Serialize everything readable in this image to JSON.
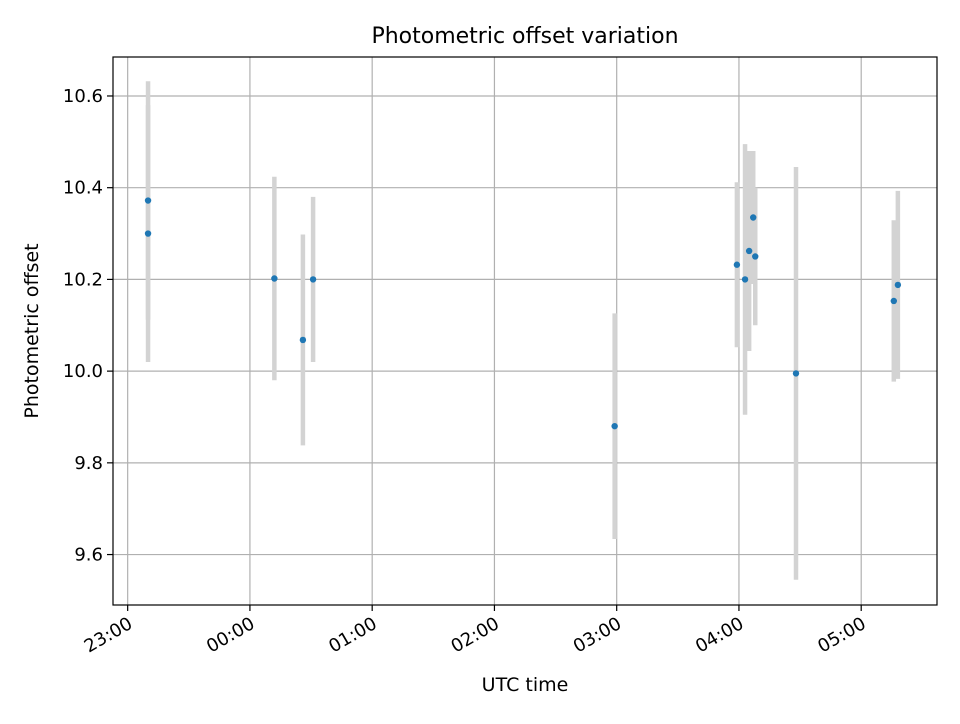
{
  "chart_data": {
    "type": "scatter",
    "title": "Photometric offset variation",
    "xlabel": "UTC time",
    "ylabel": "Photometric offset",
    "x_axis_kind": "time (hours since 23:00, spanning midnight)",
    "xlim_hours": [
      -0.12,
      6.62
    ],
    "ylim": [
      9.49,
      10.685
    ],
    "x_ticks": [
      {
        "label": "23:00",
        "h": 0
      },
      {
        "label": "00:00",
        "h": 1
      },
      {
        "label": "01:00",
        "h": 2
      },
      {
        "label": "02:00",
        "h": 3
      },
      {
        "label": "03:00",
        "h": 4
      },
      {
        "label": "04:00",
        "h": 5
      },
      {
        "label": "05:00",
        "h": 6
      }
    ],
    "y_ticks": [
      9.6,
      9.8,
      10.0,
      10.2,
      10.4,
      10.6
    ],
    "y_tick_labels": [
      "9.6",
      "9.8",
      "10.0",
      "10.2",
      "10.4",
      "10.6"
    ],
    "grid": true,
    "colors": {
      "point": "#1f77b4",
      "errorbar": "#d3d3d3",
      "grid": "#b0b0b0"
    },
    "points": [
      {
        "time": "23:10",
        "y": 10.372,
        "err": 0.26
      },
      {
        "time": "23:10",
        "y": 10.3,
        "err": 0.28
      },
      {
        "time": "00:12",
        "y": 10.202,
        "err": 0.222
      },
      {
        "time": "00:26",
        "y": 10.068,
        "err": 0.23
      },
      {
        "time": "00:31",
        "y": 10.2,
        "err": 0.18
      },
      {
        "time": "02:59",
        "y": 9.88,
        "err": 0.246
      },
      {
        "time": "03:59",
        "y": 10.232,
        "err": 0.18
      },
      {
        "time": "04:03",
        "y": 10.2,
        "err": 0.295
      },
      {
        "time": "04:05",
        "y": 10.262,
        "err": 0.218
      },
      {
        "time": "04:07",
        "y": 10.335,
        "err": 0.145
      },
      {
        "time": "04:08",
        "y": 10.25,
        "err": 0.15
      },
      {
        "time": "04:28",
        "y": 9.995,
        "err": 0.45
      },
      {
        "time": "05:16",
        "y": 10.153,
        "err": 0.176
      },
      {
        "time": "05:18",
        "y": 10.188,
        "err": 0.205
      }
    ]
  }
}
